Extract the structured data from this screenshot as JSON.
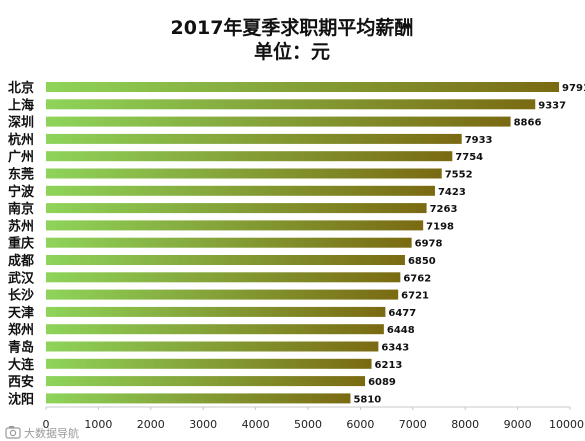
{
  "chart_data": {
    "type": "bar",
    "orientation": "horizontal",
    "title": "2017年夏季求职期平均薪酬",
    "subtitle": "单位：元",
    "categories": [
      "北京",
      "上海",
      "深圳",
      "杭州",
      "广州",
      "东莞",
      "宁波",
      "南京",
      "苏州",
      "重庆",
      "成都",
      "武汉",
      "长沙",
      "天津",
      "郑州",
      "青岛",
      "大连",
      "西安",
      "沈阳"
    ],
    "values": [
      9791,
      9337,
      8866,
      7933,
      7754,
      7552,
      7423,
      7263,
      7198,
      6978,
      6850,
      6762,
      6721,
      6477,
      6448,
      6343,
      6213,
      6089,
      5810
    ],
    "xlim": [
      0,
      10000
    ],
    "xticks": [
      "0",
      "1000",
      "2000",
      "3000",
      "4000",
      "5000",
      "6000",
      "7000",
      "8000",
      "9000",
      "10000"
    ],
    "grid": false,
    "legend": "none",
    "colors": {
      "bar_start": "#8ed45a",
      "bar_end": "#7a6a12"
    }
  },
  "watermark": {
    "icon": "camera-icon",
    "text": "大数据导航"
  }
}
